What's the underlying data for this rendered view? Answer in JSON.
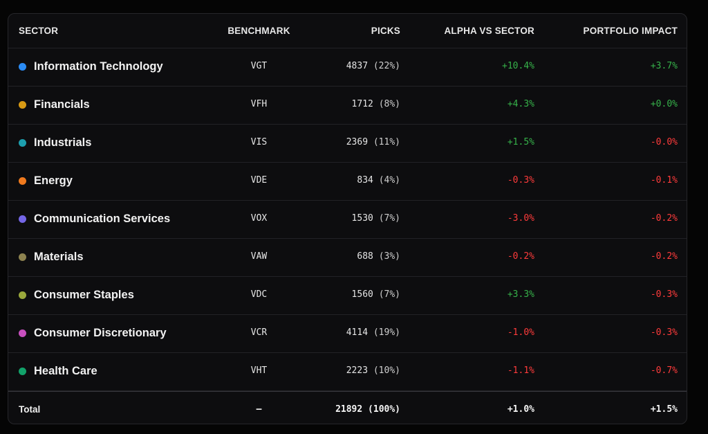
{
  "table": {
    "headers": {
      "sector": "SECTOR",
      "benchmark": "BENCHMARK",
      "picks": "PICKS",
      "alpha": "ALPHA VS SECTOR",
      "impact": "PORTFOLIO IMPACT"
    },
    "rows": [
      {
        "sector": "Information Technology",
        "color": "#2b8cf5",
        "benchmark": "VGT",
        "picks": "4837",
        "picks_pct": "(22%)",
        "alpha": "+10.4%",
        "alpha_sign": "pos",
        "impact": "+3.7%",
        "impact_sign": "pos"
      },
      {
        "sector": "Financials",
        "color": "#d89a14",
        "benchmark": "VFH",
        "picks": "1712",
        "picks_pct": "(8%)",
        "alpha": "+4.3%",
        "alpha_sign": "pos",
        "impact": "+0.0%",
        "impact_sign": "pos"
      },
      {
        "sector": "Industrials",
        "color": "#1d9fae",
        "benchmark": "VIS",
        "picks": "2369",
        "picks_pct": "(11%)",
        "alpha": "+1.5%",
        "alpha_sign": "pos",
        "impact": "-0.0%",
        "impact_sign": "neg"
      },
      {
        "sector": "Energy",
        "color": "#f07a1e",
        "benchmark": "VDE",
        "picks": "834",
        "picks_pct": "(4%)",
        "alpha": "-0.3%",
        "alpha_sign": "neg",
        "impact": "-0.1%",
        "impact_sign": "neg"
      },
      {
        "sector": "Communication Services",
        "color": "#7466e6",
        "benchmark": "VOX",
        "picks": "1530",
        "picks_pct": "(7%)",
        "alpha": "-3.0%",
        "alpha_sign": "neg",
        "impact": "-0.2%",
        "impact_sign": "neg"
      },
      {
        "sector": "Materials",
        "color": "#8d8350",
        "benchmark": "VAW",
        "picks": "688",
        "picks_pct": "(3%)",
        "alpha": "-0.2%",
        "alpha_sign": "neg",
        "impact": "-0.2%",
        "impact_sign": "neg"
      },
      {
        "sector": "Consumer Staples",
        "color": "#9aa83c",
        "benchmark": "VDC",
        "picks": "1560",
        "picks_pct": "(7%)",
        "alpha": "+3.3%",
        "alpha_sign": "pos",
        "impact": "-0.3%",
        "impact_sign": "neg"
      },
      {
        "sector": "Consumer Discretionary",
        "color": "#c850bf",
        "benchmark": "VCR",
        "picks": "4114",
        "picks_pct": "(19%)",
        "alpha": "-1.0%",
        "alpha_sign": "neg",
        "impact": "-0.3%",
        "impact_sign": "neg"
      },
      {
        "sector": "Health Care",
        "color": "#12a26a",
        "benchmark": "VHT",
        "picks": "2223",
        "picks_pct": "(10%)",
        "alpha": "-1.1%",
        "alpha_sign": "neg",
        "impact": "-0.7%",
        "impact_sign": "neg"
      }
    ],
    "total": {
      "label": "Total",
      "benchmark": "–",
      "picks": "21892 (100%)",
      "alpha": "+1.0%",
      "impact": "+1.5%"
    }
  }
}
